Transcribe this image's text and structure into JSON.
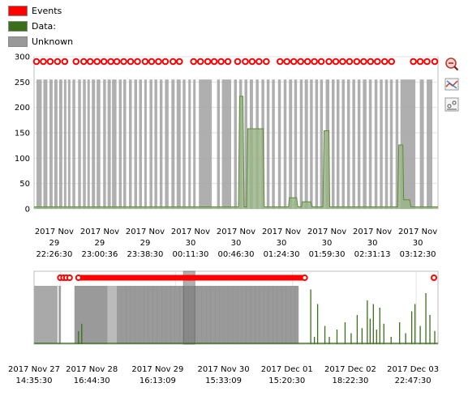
{
  "legend": [
    {
      "label": "Events",
      "color": "#ff0000"
    },
    {
      "label": "Data:",
      "color": "#3a6e1a"
    },
    {
      "label": "Unknown",
      "color": "#999999"
    }
  ],
  "toolbar": [
    {
      "icon": "zoom-out-icon"
    },
    {
      "icon": "reset-zoom-icon"
    },
    {
      "icon": "chart-style-icon"
    }
  ],
  "colors": {
    "events": "#ff0000",
    "data_fill": "#9ab58a",
    "data_line": "#5c8a3a",
    "unknown": "#a6a6a6",
    "overview_data": "#3a6e1a"
  },
  "chart_data": [
    {
      "type": "area",
      "ylim": [
        0,
        300
      ],
      "y_ticks": [
        0,
        50,
        100,
        150,
        200,
        250,
        300
      ],
      "x_ticks": [
        {
          "line1": "2017 Nov",
          "line2": "29",
          "line3": "22:26:30"
        },
        {
          "line1": "2017 Nov",
          "line2": "29",
          "line3": "23:00:36"
        },
        {
          "line1": "2017 Nov",
          "line2": "29",
          "line3": "23:38:30"
        },
        {
          "line1": "2017 Nov",
          "line2": "30",
          "line3": "00:11:30"
        },
        {
          "line1": "2017 Nov",
          "line2": "30",
          "line3": "00:46:30"
        },
        {
          "line1": "2017 Nov",
          "line2": "30",
          "line3": "01:24:30"
        },
        {
          "line1": "2017 Nov",
          "line2": "30",
          "line3": "01:59:30"
        },
        {
          "line1": "2017 Nov",
          "line2": "30",
          "line3": "02:31:13"
        },
        {
          "line1": "2017 Nov",
          "line2": "30",
          "line3": "03:12:30"
        }
      ],
      "unknown_bands": [
        [
          0.6,
          1.9
        ],
        [
          2.3,
          3.3
        ],
        [
          3.8,
          4.6
        ],
        [
          5.0,
          5.8
        ],
        [
          6.2,
          7.0
        ],
        [
          7.4,
          8.0
        ],
        [
          8.4,
          9.0
        ],
        [
          9.5,
          10.2
        ],
        [
          10.9,
          11.6
        ],
        [
          12.1,
          12.8
        ],
        [
          13.2,
          13.8
        ],
        [
          14.3,
          15.1
        ],
        [
          15.5,
          16.4
        ],
        [
          17.1,
          17.8
        ],
        [
          18.2,
          19.0
        ],
        [
          19.3,
          20.4
        ],
        [
          21.0,
          21.7
        ],
        [
          22.1,
          22.8
        ],
        [
          23.5,
          24.2
        ],
        [
          24.8,
          25.5
        ],
        [
          26.0,
          26.7
        ],
        [
          27.3,
          27.9
        ],
        [
          28.6,
          29.3
        ],
        [
          29.8,
          30.5
        ],
        [
          31.1,
          31.8
        ],
        [
          32.4,
          33.3
        ],
        [
          34.0,
          34.8
        ],
        [
          35.3,
          36.3
        ],
        [
          36.8,
          37.5
        ],
        [
          38.2,
          38.8
        ],
        [
          39.4,
          40.0
        ],
        [
          40.8,
          44.0
        ],
        [
          45.3,
          46.0
        ],
        [
          46.5,
          48.8
        ],
        [
          49.5,
          50.2
        ],
        [
          50.8,
          51.5
        ],
        [
          52.1,
          52.8
        ],
        [
          53.4,
          54.2
        ],
        [
          54.9,
          55.6
        ],
        [
          56.3,
          57.0
        ],
        [
          57.6,
          58.3
        ],
        [
          58.9,
          59.6
        ],
        [
          60.4,
          61.1
        ],
        [
          61.8,
          62.5
        ],
        [
          63.1,
          63.9
        ],
        [
          64.4,
          65.1
        ],
        [
          65.8,
          66.5
        ],
        [
          67.0,
          67.8
        ],
        [
          68.3,
          69.0
        ],
        [
          69.6,
          70.3
        ],
        [
          70.8,
          71.5
        ],
        [
          72.2,
          73.1
        ],
        [
          73.7,
          74.4
        ],
        [
          74.9,
          75.6
        ],
        [
          76.2,
          76.9
        ],
        [
          77.5,
          78.2
        ],
        [
          78.8,
          79.5
        ],
        [
          80.1,
          80.8
        ],
        [
          81.4,
          82.3
        ],
        [
          82.9,
          83.6
        ],
        [
          84.3,
          85.0
        ],
        [
          85.6,
          86.3
        ],
        [
          86.9,
          87.6
        ],
        [
          88.1,
          88.8
        ],
        [
          89.5,
          90.2
        ],
        [
          90.7,
          94.4
        ],
        [
          95.5,
          96.5
        ],
        [
          97.2,
          98.6
        ]
      ],
      "data_series": [
        [
          0,
          4
        ],
        [
          50.6,
          4
        ],
        [
          50.9,
          222
        ],
        [
          51.7,
          222
        ],
        [
          52.0,
          4
        ],
        [
          52.6,
          4
        ],
        [
          52.9,
          158
        ],
        [
          56.7,
          158
        ],
        [
          57.0,
          4
        ],
        [
          63.0,
          4
        ],
        [
          63.2,
          22
        ],
        [
          65.0,
          22
        ],
        [
          65.3,
          4
        ],
        [
          66.2,
          4
        ],
        [
          66.4,
          14
        ],
        [
          68.5,
          14
        ],
        [
          68.8,
          4
        ],
        [
          71.5,
          4
        ],
        [
          71.8,
          154
        ],
        [
          73.0,
          154
        ],
        [
          73.2,
          4
        ],
        [
          90.0,
          4
        ],
        [
          90.3,
          126
        ],
        [
          91.3,
          126
        ],
        [
          91.5,
          18
        ],
        [
          93.0,
          18
        ],
        [
          93.3,
          4
        ],
        [
          100,
          4
        ]
      ],
      "event_markers": [
        0.6,
        2.3,
        4.0,
        5.8,
        7.6,
        10.4,
        12.3,
        13.9,
        15.6,
        17.3,
        19.0,
        20.5,
        22.2,
        23.9,
        25.6,
        27.5,
        29.1,
        30.8,
        32.5,
        34.4,
        36.0,
        39.5,
        41.2,
        43.0,
        44.6,
        46.3,
        48.0,
        50.4,
        52.3,
        54.0,
        55.7,
        57.5,
        60.9,
        62.6,
        64.3,
        66.0,
        67.7,
        69.4,
        71.1,
        73.0,
        74.7,
        76.4,
        78.1,
        79.9,
        81.6,
        83.3,
        85.0,
        86.8,
        88.5,
        93.9,
        95.6,
        97.3,
        99.2
      ]
    },
    {
      "type": "area",
      "role": "overview",
      "x_ticks": [
        {
          "line1": "2017 Nov 27",
          "line2": "14:35:30"
        },
        {
          "line1": "2017 Nov 28",
          "line2": "16:44:30"
        },
        {
          "line1": "2017 Nov 29",
          "line2": "16:13:09"
        },
        {
          "line1": "2017 Nov 30",
          "line2": "15:33:09"
        },
        {
          "line1": "2017 Dec 01",
          "line2": "15:20:30"
        },
        {
          "line1": "2017 Dec 02",
          "line2": "18:22:30"
        },
        {
          "line1": "2017 Dec 03",
          "line2": "22:47:30"
        }
      ],
      "unknown_bands": [
        [
          0,
          5.8
        ],
        [
          6.1,
          6.6
        ],
        [
          10.0,
          18.2
        ],
        [
          18.2,
          20.5
        ],
        [
          20.5,
          65.5
        ]
      ],
      "selection_range": [
        37.0,
        38.2
      ],
      "event_markers_left": [
        6.5,
        7.3,
        8.0,
        8.8
      ],
      "event_dense_range": [
        11.0,
        67.0
      ],
      "event_markers_right": [
        99.0
      ],
      "overview_spikes": [
        [
          11.0,
          0.18
        ],
        [
          11.8,
          0.28
        ],
        [
          68.5,
          0.75
        ],
        [
          69.4,
          0.1
        ],
        [
          70.2,
          0.55
        ],
        [
          72.0,
          0.25
        ],
        [
          73.1,
          0.1
        ],
        [
          75.0,
          0.2
        ],
        [
          77.0,
          0.3
        ],
        [
          78.5,
          0.15
        ],
        [
          80.0,
          0.4
        ],
        [
          81.2,
          0.22
        ],
        [
          82.5,
          0.6
        ],
        [
          83.2,
          0.35
        ],
        [
          84.0,
          0.55
        ],
        [
          84.8,
          0.2
        ],
        [
          85.6,
          0.5
        ],
        [
          86.6,
          0.28
        ],
        [
          88.4,
          0.1
        ],
        [
          90.5,
          0.3
        ],
        [
          92.0,
          0.15
        ],
        [
          93.5,
          0.45
        ],
        [
          94.3,
          0.55
        ],
        [
          95.6,
          0.25
        ],
        [
          97.0,
          0.7
        ],
        [
          98.0,
          0.4
        ],
        [
          99.2,
          0.18
        ]
      ]
    }
  ]
}
